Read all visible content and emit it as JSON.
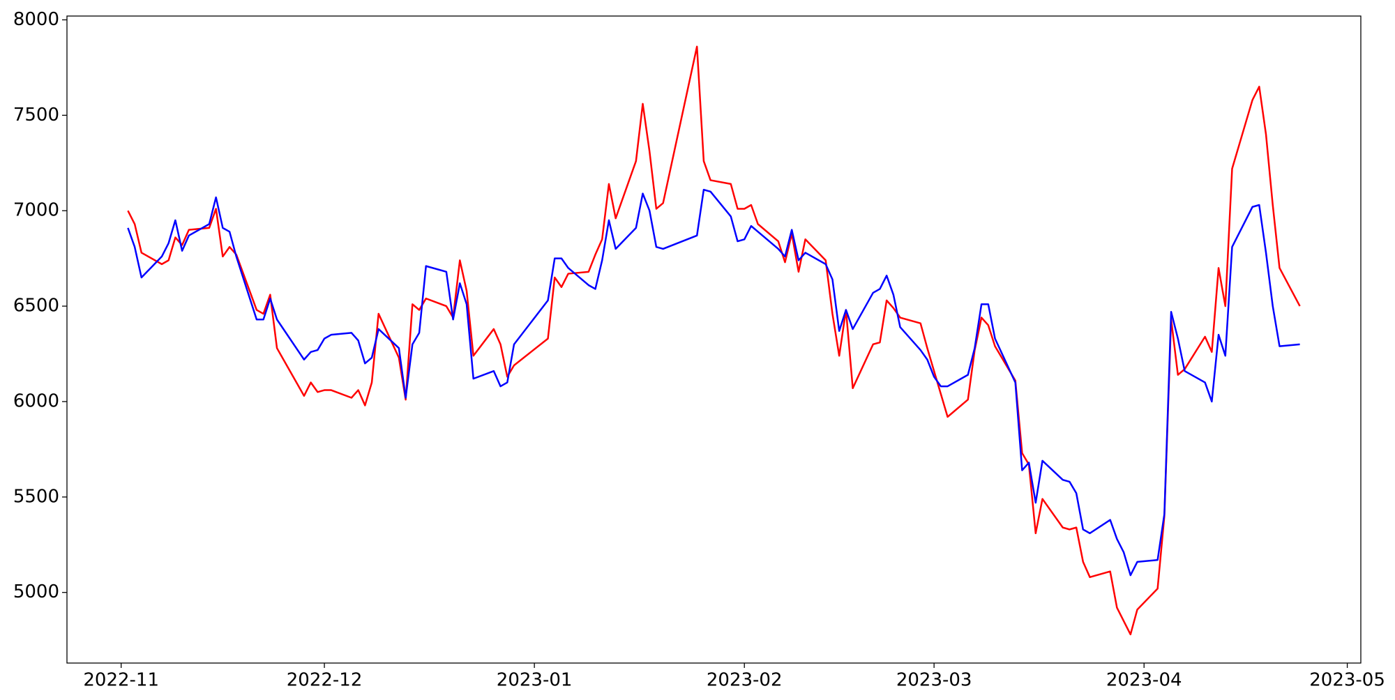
{
  "chart_data": {
    "type": "line",
    "x": [
      "2022-11-02",
      "2022-11-03",
      "2022-11-04",
      "2022-11-07",
      "2022-11-08",
      "2022-11-09",
      "2022-11-10",
      "2022-11-11",
      "2022-11-14",
      "2022-11-15",
      "2022-11-16",
      "2022-11-17",
      "2022-11-18",
      "2022-11-21",
      "2022-11-22",
      "2022-11-23",
      "2022-11-24",
      "2022-11-28",
      "2022-11-29",
      "2022-11-30",
      "2022-12-01",
      "2022-12-02",
      "2022-12-05",
      "2022-12-06",
      "2022-12-07",
      "2022-12-08",
      "2022-12-09",
      "2022-12-12",
      "2022-12-13",
      "2022-12-14",
      "2022-12-15",
      "2022-12-16",
      "2022-12-19",
      "2022-12-20",
      "2022-12-21",
      "2022-12-22",
      "2022-12-23",
      "2022-12-26",
      "2022-12-27",
      "2022-12-28",
      "2022-12-29",
      "2023-01-03",
      "2023-01-04",
      "2023-01-05",
      "2023-01-06",
      "2023-01-09",
      "2023-01-10",
      "2023-01-11",
      "2023-01-12",
      "2023-01-13",
      "2023-01-16",
      "2023-01-17",
      "2023-01-18",
      "2023-01-19",
      "2023-01-20",
      "2023-01-25",
      "2023-01-26",
      "2023-01-27",
      "2023-01-30",
      "2023-01-31",
      "2023-02-01",
      "2023-02-02",
      "2023-02-03",
      "2023-02-06",
      "2023-02-07",
      "2023-02-08",
      "2023-02-09",
      "2023-02-10",
      "2023-02-13",
      "2023-02-14",
      "2023-02-15",
      "2023-02-16",
      "2023-02-17",
      "2023-02-20",
      "2023-02-21",
      "2023-02-22",
      "2023-02-23",
      "2023-02-24",
      "2023-02-27",
      "2023-02-28",
      "2023-03-01",
      "2023-03-02",
      "2023-03-03",
      "2023-03-06",
      "2023-03-07",
      "2023-03-08",
      "2023-03-09",
      "2023-03-10",
      "2023-03-13",
      "2023-03-14",
      "2023-03-15",
      "2023-03-16",
      "2023-03-17",
      "2023-03-20",
      "2023-03-21",
      "2023-03-22",
      "2023-03-23",
      "2023-03-24",
      "2023-03-27",
      "2023-03-28",
      "2023-03-29",
      "2023-03-30",
      "2023-03-31",
      "2023-04-03",
      "2023-04-04",
      "2023-04-05",
      "2023-04-06",
      "2023-04-07",
      "2023-04-10",
      "2023-04-11",
      "2023-04-12",
      "2023-04-13",
      "2023-04-14",
      "2023-04-17",
      "2023-04-18",
      "2023-04-19",
      "2023-04-20",
      "2023-04-21",
      "2023-04-24"
    ],
    "series": [
      {
        "color": "#ff0000",
        "values": [
          7000,
          6930,
          6780,
          6720,
          6740,
          6860,
          6820,
          6900,
          6910,
          7010,
          6760,
          6810,
          6770,
          6480,
          6460,
          6560,
          6280,
          6030,
          6100,
          6050,
          6060,
          6060,
          6020,
          6060,
          5980,
          6100,
          6460,
          6230,
          6010,
          6510,
          6480,
          6540,
          6500,
          6440,
          6740,
          6580,
          6240,
          6380,
          6300,
          6130,
          6190,
          6330,
          6650,
          6600,
          6670,
          6680,
          6770,
          6850,
          7140,
          6960,
          7260,
          7560,
          7310,
          7010,
          7040,
          7860,
          7260,
          7160,
          7140,
          7010,
          7010,
          7030,
          6930,
          6840,
          6730,
          6880,
          6680,
          6850,
          6740,
          6460,
          6240,
          6480,
          6070,
          6300,
          6310,
          6530,
          6490,
          6440,
          6410,
          6280,
          6160,
          6040,
          5920,
          6010,
          6270,
          6440,
          6400,
          6290,
          6110,
          5730,
          5670,
          5310,
          5490,
          5340,
          5330,
          5340,
          5160,
          5080,
          5110,
          4920,
          4850,
          4780,
          4910,
          5020,
          5400,
          6430,
          6140,
          6170,
          6340,
          6260,
          6700,
          6500,
          7220,
          7580,
          7650,
          7400,
          7030,
          6700,
          6500
        ]
      },
      {
        "color": "#0000ff",
        "values": [
          6910,
          6810,
          6650,
          6760,
          6830,
          6950,
          6790,
          6870,
          6930,
          7070,
          6910,
          6890,
          6760,
          6430,
          6430,
          6540,
          6430,
          6220,
          6260,
          6270,
          6330,
          6350,
          6360,
          6320,
          6200,
          6230,
          6380,
          6280,
          6020,
          6300,
          6360,
          6710,
          6680,
          6430,
          6620,
          6510,
          6120,
          6160,
          6080,
          6100,
          6300,
          6530,
          6750,
          6750,
          6700,
          6610,
          6590,
          6740,
          6950,
          6800,
          6910,
          7090,
          7000,
          6810,
          6800,
          6870,
          7110,
          7100,
          6970,
          6840,
          6850,
          6920,
          6890,
          6800,
          6760,
          6900,
          6740,
          6780,
          6720,
          6640,
          6370,
          6480,
          6380,
          6570,
          6590,
          6660,
          6560,
          6390,
          6270,
          6220,
          6130,
          6080,
          6080,
          6140,
          6280,
          6510,
          6510,
          6330,
          6100,
          5640,
          5680,
          5470,
          5690,
          5590,
          5580,
          5520,
          5330,
          5310,
          5380,
          5280,
          5210,
          5090,
          5160,
          5170,
          5410,
          6470,
          6330,
          6160,
          6100,
          6000,
          6350,
          6240,
          6810,
          7020,
          7030,
          6780,
          6500,
          6290,
          6300
        ]
      }
    ],
    "xlim": [
      "2022-10-24",
      "2023-05-03"
    ],
    "xticks": [
      {
        "value": "2022-11-01",
        "label": "2022-11"
      },
      {
        "value": "2022-12-01",
        "label": "2022-12"
      },
      {
        "value": "2023-01-01",
        "label": "2023-01"
      },
      {
        "value": "2023-02-01",
        "label": "2023-02"
      },
      {
        "value": "2023-03-01",
        "label": "2023-03"
      },
      {
        "value": "2023-04-01",
        "label": "2023-04"
      },
      {
        "value": "2023-05-01",
        "label": "2023-05"
      }
    ],
    "ylim": [
      4630,
      8020
    ],
    "yticks": [
      5000,
      5500,
      6000,
      6500,
      7000,
      7500,
      8000
    ],
    "grid": false
  }
}
